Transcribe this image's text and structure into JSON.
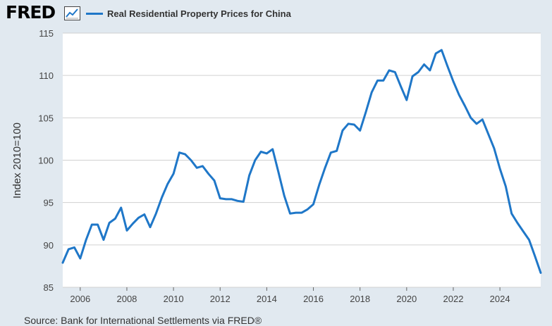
{
  "header": {
    "logo_text": "FRED",
    "logo_icon": "line-graph-icon",
    "legend_label": "Real Residential Property Prices for China"
  },
  "source": "Source: Bank for International Settlements via FRED®",
  "colors": {
    "series": "#1f77c8",
    "plot_bg": "#ffffff",
    "page_bg": "#e1e9f0",
    "grid": "#d0d0d0"
  },
  "chart_data": {
    "type": "line",
    "title": "",
    "xlabel": "",
    "ylabel": "Index 2010=100",
    "xlim": [
      2005.25,
      2025.75
    ],
    "ylim": [
      85,
      115
    ],
    "yticks": [
      {
        "value": 85,
        "label": "85"
      },
      {
        "value": 90,
        "label": "90"
      },
      {
        "value": 95,
        "label": "95"
      },
      {
        "value": 100,
        "label": "100"
      },
      {
        "value": 105,
        "label": "105"
      },
      {
        "value": 110,
        "label": "110"
      },
      {
        "value": 115,
        "label": "115"
      }
    ],
    "xticks": [
      {
        "value": 2006,
        "label": "2006"
      },
      {
        "value": 2008,
        "label": "2008"
      },
      {
        "value": 2010,
        "label": "2010"
      },
      {
        "value": 2012,
        "label": "2012"
      },
      {
        "value": 2014,
        "label": "2014"
      },
      {
        "value": 2016,
        "label": "2016"
      },
      {
        "value": 2018,
        "label": "2018"
      },
      {
        "value": 2020,
        "label": "2020"
      },
      {
        "value": 2022,
        "label": "2022"
      },
      {
        "value": 2024,
        "label": "2024"
      }
    ],
    "grid": true,
    "legend": "top-left",
    "series": [
      {
        "name": "Real Residential Property Prices for China",
        "x": [
          2005.25,
          2005.5,
          2005.75,
          2006.0,
          2006.25,
          2006.5,
          2006.75,
          2007.0,
          2007.25,
          2007.5,
          2007.75,
          2008.0,
          2008.25,
          2008.5,
          2008.75,
          2009.0,
          2009.25,
          2009.5,
          2009.75,
          2010.0,
          2010.25,
          2010.5,
          2010.75,
          2011.0,
          2011.25,
          2011.5,
          2011.75,
          2012.0,
          2012.25,
          2012.5,
          2012.75,
          2013.0,
          2013.25,
          2013.5,
          2013.75,
          2014.0,
          2014.25,
          2014.5,
          2014.75,
          2015.0,
          2015.25,
          2015.5,
          2015.75,
          2016.0,
          2016.25,
          2016.5,
          2016.75,
          2017.0,
          2017.25,
          2017.5,
          2017.75,
          2018.0,
          2018.25,
          2018.5,
          2018.75,
          2019.0,
          2019.25,
          2019.5,
          2019.75,
          2020.0,
          2020.25,
          2020.5,
          2020.75,
          2021.0,
          2021.25,
          2021.5,
          2021.75,
          2022.0,
          2022.25,
          2022.5,
          2022.75,
          2023.0,
          2023.25,
          2023.5,
          2023.75,
          2024.0,
          2024.25,
          2024.5,
          2024.75,
          2025.0,
          2025.25,
          2025.5,
          2025.75
        ],
        "values": [
          87.9,
          89.5,
          89.7,
          88.4,
          90.6,
          92.4,
          92.4,
          90.6,
          92.6,
          93.1,
          94.4,
          91.7,
          92.5,
          93.2,
          93.6,
          92.1,
          93.7,
          95.6,
          97.2,
          98.4,
          100.9,
          100.7,
          100.0,
          99.1,
          99.3,
          98.4,
          97.6,
          95.5,
          95.4,
          95.4,
          95.2,
          95.1,
          98.2,
          100.0,
          101.0,
          100.8,
          101.3,
          98.6,
          95.8,
          93.7,
          93.8,
          93.8,
          94.2,
          94.8,
          97.1,
          99.1,
          100.9,
          101.1,
          103.5,
          104.3,
          104.2,
          103.5,
          105.7,
          108.0,
          109.4,
          109.4,
          110.6,
          110.4,
          108.7,
          107.1,
          109.9,
          110.4,
          111.3,
          110.6,
          112.6,
          113.0,
          111.1,
          109.3,
          107.7,
          106.4,
          105.0,
          104.3,
          104.8,
          103.1,
          101.4,
          99.0,
          96.9,
          93.7,
          92.6,
          91.6,
          90.6,
          88.7,
          86.7
        ]
      }
    ]
  }
}
